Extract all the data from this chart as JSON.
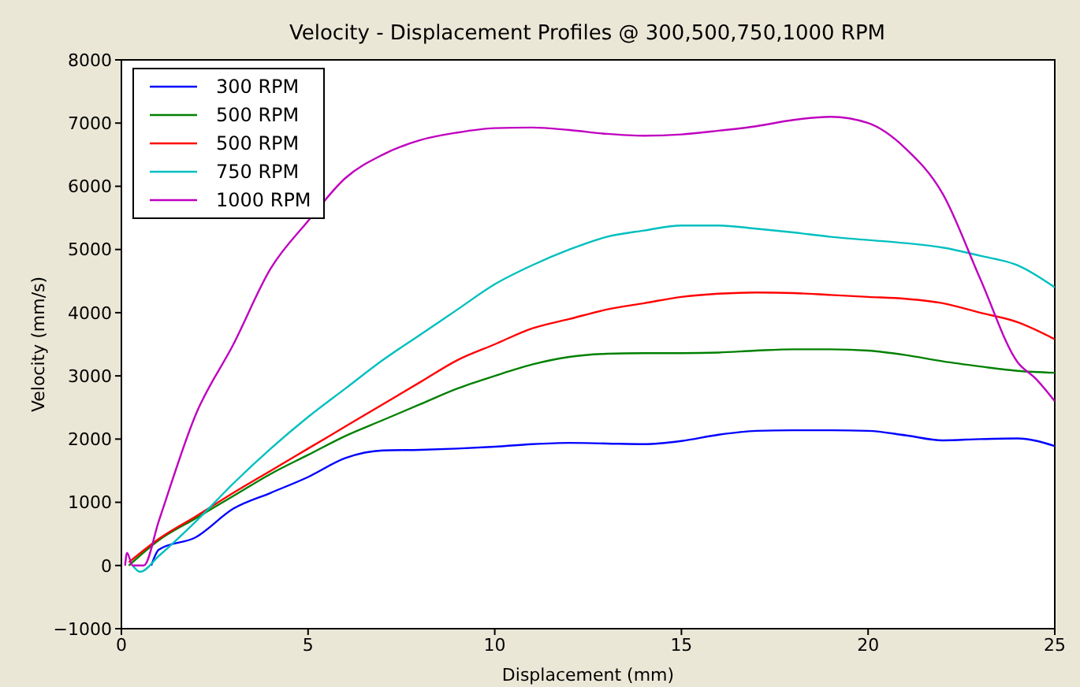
{
  "chart_data": {
    "type": "line",
    "title": "Velocity - Displacement Profiles @ 300,500,750,1000 RPM",
    "xlabel": "Displacement (mm)",
    "ylabel": "Velocity (mm/s)",
    "xlim": [
      0,
      25
    ],
    "xticks": [
      0,
      5,
      10,
      15,
      20,
      25
    ],
    "ylim": [
      -1000,
      8000
    ],
    "yticks": [
      -1000,
      0,
      1000,
      2000,
      3000,
      4000,
      5000,
      6000,
      7000,
      8000
    ],
    "legend": "top left",
    "marker": "none",
    "line_style": "solid",
    "series": [
      {
        "name": "300 RPM",
        "color": "#0000ff",
        "x": [
          0.8,
          1,
          2,
          3,
          4,
          5,
          6,
          7,
          8,
          9,
          10,
          11,
          12,
          13,
          14,
          15,
          16,
          17,
          18,
          19,
          20,
          21,
          22,
          23,
          24,
          25
        ],
        "values": [
          0,
          250,
          450,
          900,
          1150,
          1400,
          1700,
          1820,
          1830,
          1850,
          1880,
          1920,
          1940,
          1930,
          1920,
          1970,
          2070,
          2130,
          2140,
          2140,
          2130,
          2060,
          1980,
          2000,
          2010,
          1890
        ]
      },
      {
        "name": "500 RPM",
        "color": "#008000",
        "x": [
          0.2,
          1,
          2,
          3,
          4,
          5,
          6,
          7,
          8,
          9,
          10,
          11,
          12,
          13,
          14,
          15,
          16,
          17,
          18,
          19,
          20,
          21,
          22,
          23,
          24,
          25
        ],
        "values": [
          0,
          400,
          750,
          1100,
          1450,
          1750,
          2050,
          2300,
          2550,
          2800,
          3000,
          3180,
          3300,
          3350,
          3360,
          3360,
          3370,
          3400,
          3420,
          3420,
          3400,
          3330,
          3230,
          3150,
          3080,
          3050
        ]
      },
      {
        "name": "500 RPM",
        "color": "#ff0000",
        "x": [
          0.2,
          1,
          2,
          3,
          4,
          5,
          6,
          7,
          8,
          9,
          10,
          11,
          12,
          13,
          14,
          15,
          16,
          17,
          18,
          19,
          20,
          21,
          22,
          23,
          24,
          25
        ],
        "values": [
          50,
          420,
          780,
          1150,
          1500,
          1850,
          2200,
          2550,
          2900,
          3250,
          3500,
          3750,
          3900,
          4050,
          4150,
          4250,
          4300,
          4320,
          4310,
          4280,
          4250,
          4220,
          4150,
          4000,
          3850,
          3580
        ]
      },
      {
        "name": "750 RPM",
        "color": "#00bfbf",
        "x": [
          0.3,
          0.5,
          1,
          2,
          3,
          4,
          5,
          6,
          7,
          8,
          9,
          10,
          11,
          12,
          13,
          14,
          15,
          16,
          17,
          18,
          19,
          20,
          21,
          22,
          23,
          24,
          25
        ],
        "values": [
          0,
          -100,
          150,
          700,
          1300,
          1850,
          2350,
          2800,
          3250,
          3650,
          4050,
          4450,
          4750,
          5000,
          5200,
          5300,
          5380,
          5380,
          5330,
          5270,
          5200,
          5150,
          5100,
          5030,
          4900,
          4750,
          4400
        ]
      },
      {
        "name": "1000 RPM",
        "color": "#bf00bf",
        "x": [
          0.1,
          0.15,
          0.3,
          0.6,
          1,
          2,
          3,
          4,
          5,
          6,
          7,
          8,
          9,
          10,
          11,
          12,
          13,
          14,
          15,
          16,
          17,
          18,
          19,
          20,
          21,
          22,
          23,
          24,
          24.5,
          25
        ],
        "values": [
          0,
          200,
          0,
          0,
          700,
          2400,
          3500,
          4700,
          5450,
          6130,
          6500,
          6730,
          6850,
          6920,
          6930,
          6890,
          6830,
          6800,
          6820,
          6880,
          6950,
          7050,
          7100,
          7000,
          6600,
          5880,
          4540,
          3220,
          2950,
          2600
        ]
      }
    ]
  }
}
